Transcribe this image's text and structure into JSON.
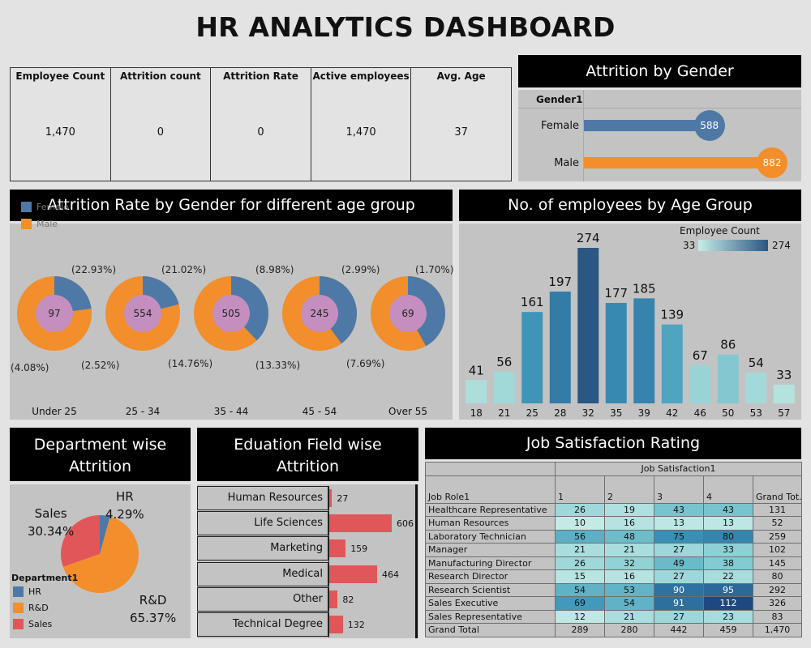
{
  "title": "HR ANALYTICS DASHBOARD",
  "kpis": [
    {
      "label": "Employee Count",
      "value": "1,470"
    },
    {
      "label": "Attrition count",
      "value": "0"
    },
    {
      "label": "Attrition Rate",
      "value": "0"
    },
    {
      "label": "Active employees",
      "value": "1,470"
    },
    {
      "label": "Avg. Age",
      "value": "37"
    }
  ],
  "gender_panel": {
    "title": "Attrition by Gender",
    "field_label": "Gender1",
    "rows": [
      {
        "label": "Female",
        "value": 588,
        "value_text": "588"
      },
      {
        "label": "Male",
        "value": 882,
        "value_text": "882"
      }
    ]
  },
  "age_gender_panel": {
    "title": "Attrition Rate by Gender for different age group",
    "legend": [
      {
        "label": "Female"
      },
      {
        "label": "Male"
      }
    ],
    "groups": [
      {
        "label": "Under 25",
        "center": "97",
        "female_pct": "(22.93%)",
        "male_pct": "(4.08%)",
        "female_share": 0.2293
      },
      {
        "label": "25 - 34",
        "center": "554",
        "female_pct": "(21.02%)",
        "male_pct": "(2.52%)",
        "female_share": 0.2102
      },
      {
        "label": "35 - 44",
        "center": "505",
        "female_pct": "(8.98%)",
        "male_pct": "(14.76%)",
        "female_share": 0.3784
      },
      {
        "label": "45 - 54",
        "center": "245",
        "female_pct": "(2.99%)",
        "male_pct": "(13.33%)",
        "female_share": 0.4
      },
      {
        "label": "Over 55",
        "center": "69",
        "female_pct": "(1.70%)",
        "male_pct": "(7.69%)",
        "female_share": 0.42
      }
    ]
  },
  "age_count_panel": {
    "title": "No. of employees by Age Group",
    "legend_title": "Employee Count",
    "legend_min": "33",
    "legend_max": "274"
  },
  "dept_panel": {
    "title_line1": "Department wise",
    "title_line2": "Attrition",
    "legend_title": "Department1",
    "slices": [
      {
        "label": "HR",
        "pct": "4.29%",
        "value": 4.29
      },
      {
        "label": "R&D",
        "pct": "65.37%",
        "value": 65.37
      },
      {
        "label": "Sales",
        "pct": "30.34%",
        "value": 30.34
      }
    ]
  },
  "edu_panel": {
    "title_line1": "Eduation Field wise",
    "title_line2": "Attrition",
    "rows": [
      {
        "label": "Human Resources",
        "value": 27,
        "value_text": "27"
      },
      {
        "label": "Life Sciences",
        "value": 606,
        "value_text": "606"
      },
      {
        "label": "Marketing",
        "value": 159,
        "value_text": "159"
      },
      {
        "label": "Medical",
        "value": 464,
        "value_text": "464"
      },
      {
        "label": "Other",
        "value": 82,
        "value_text": "82"
      },
      {
        "label": "Technical Degree",
        "value": 132,
        "value_text": "132"
      }
    ]
  },
  "job_panel": {
    "title": "Job Satisfaction Rating",
    "col_group": "Job Satisfaction1",
    "row_header": "Job Role1",
    "columns": [
      "1",
      "2",
      "3",
      "4",
      "Grand Tot.."
    ],
    "rows": [
      {
        "role": "Healthcare Representative",
        "vals": [
          "26",
          "19",
          "43",
          "43",
          "131"
        ]
      },
      {
        "role": "Human Resources",
        "vals": [
          "10",
          "16",
          "13",
          "13",
          "52"
        ]
      },
      {
        "role": "Laboratory Technician",
        "vals": [
          "56",
          "48",
          "75",
          "80",
          "259"
        ]
      },
      {
        "role": "Manager",
        "vals": [
          "21",
          "21",
          "27",
          "33",
          "102"
        ]
      },
      {
        "role": "Manufacturing Director",
        "vals": [
          "26",
          "32",
          "49",
          "38",
          "145"
        ]
      },
      {
        "role": "Research Director",
        "vals": [
          "15",
          "16",
          "27",
          "22",
          "80"
        ]
      },
      {
        "role": "Research Scientist",
        "vals": [
          "54",
          "53",
          "90",
          "95",
          "292"
        ]
      },
      {
        "role": "Sales Executive",
        "vals": [
          "69",
          "54",
          "91",
          "112",
          "326"
        ]
      },
      {
        "role": "Sales Representative",
        "vals": [
          "12",
          "21",
          "27",
          "23",
          "83"
        ]
      }
    ],
    "total": {
      "role": "Grand Total",
      "vals": [
        "289",
        "280",
        "442",
        "459",
        "1,470"
      ]
    }
  },
  "colors": {
    "female": "#4e79a7",
    "male": "#f28e2b",
    "hole": "#c48fbf",
    "sales": "#e15759",
    "edu_bar": "#e15759",
    "teal_light": "#b4e2dc",
    "teal_dark": "#2a5783"
  },
  "chart_data": [
    {
      "type": "bar",
      "title": "No. of employees by Age Group",
      "categories": [
        "18",
        "21",
        "25",
        "28",
        "32",
        "35",
        "39",
        "42",
        "46",
        "50",
        "53",
        "57"
      ],
      "values": [
        41,
        56,
        161,
        197,
        274,
        177,
        185,
        139,
        67,
        86,
        54,
        33
      ],
      "legend": "Employee Count"
    },
    {
      "type": "bar",
      "title": "Eduation Field wise Attrition",
      "categories": [
        "Human Resources",
        "Life Sciences",
        "Marketing",
        "Medical",
        "Other",
        "Technical Degree"
      ],
      "values": [
        27,
        606,
        159,
        464,
        82,
        132
      ]
    },
    {
      "type": "bar",
      "title": "Attrition by Gender",
      "categories": [
        "Female",
        "Male"
      ],
      "values": [
        588,
        882
      ]
    },
    {
      "type": "pie",
      "title": "Department wise Attrition",
      "categories": [
        "HR",
        "R&D",
        "Sales"
      ],
      "values": [
        4.29,
        65.37,
        30.34
      ]
    }
  ]
}
